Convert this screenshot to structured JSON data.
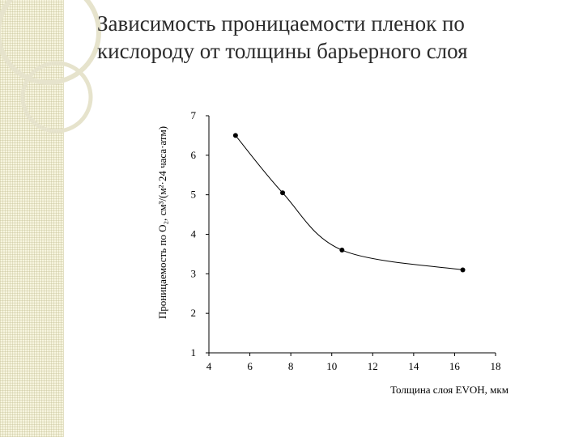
{
  "slide": {
    "title_line1": "Зависимость проницаемости пленок по",
    "title_line2": "кислороду от толщины барьерного слоя"
  },
  "theme": {
    "band_color": "#f7f5df",
    "ornament_color": "#e6e3cc",
    "axis_color": "#000000"
  },
  "chart_data": {
    "type": "line",
    "title": "",
    "xlabel": "Толщина слоя EVOH, мкм",
    "ylabel": "Проницаемость по O₂, см³/(м²·24 часа·атм)",
    "xlim": [
      4,
      18
    ],
    "ylim": [
      1,
      7
    ],
    "xticks": [
      4,
      6,
      8,
      10,
      12,
      14,
      16,
      18
    ],
    "yticks": [
      1,
      2,
      3,
      4,
      5,
      6,
      7
    ],
    "grid": false,
    "legend": "none",
    "series": [
      {
        "x": [
          5.3,
          7.6,
          10.5,
          16.4
        ],
        "y": [
          6.5,
          5.05,
          3.6,
          3.1
        ]
      }
    ]
  }
}
